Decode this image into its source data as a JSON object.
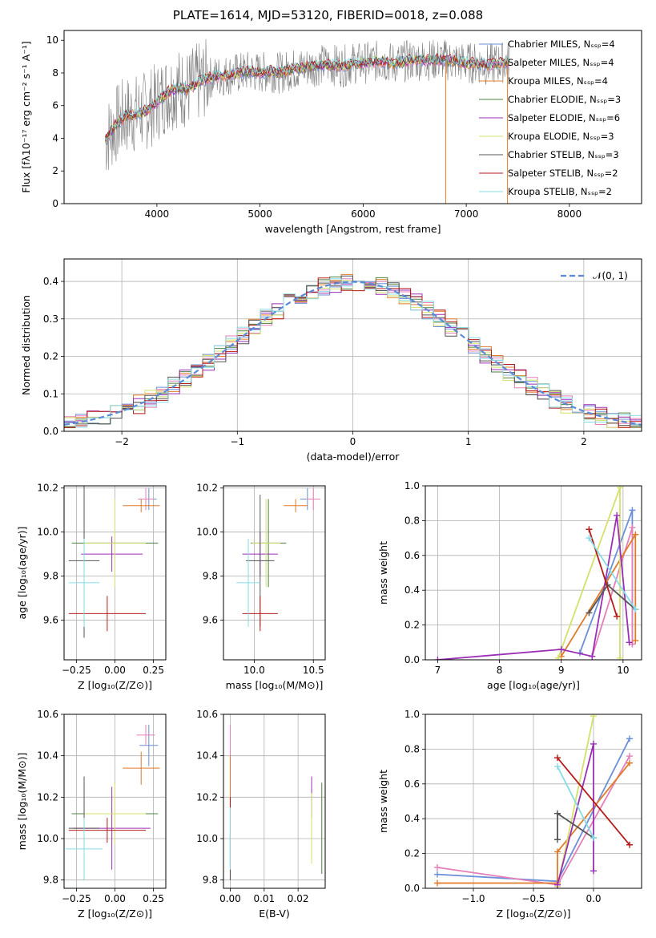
{
  "figure_title": "PLATE=1614, MJD=53120, FIBERID=0018, z=0.088",
  "legend_entries": [
    {
      "label": "Chabrier MILES, Nₛₛₚ=4",
      "color": "#6a8fd8"
    },
    {
      "label": "Salpeter MILES, Nₛₛₚ=4",
      "color": "#e57fb9"
    },
    {
      "label": "Kroupa MILES, Nₛₛₚ=4",
      "color": "#e07b2a"
    },
    {
      "label": "Chabrier ELODIE, Nₛₛₚ=3",
      "color": "#4d8040"
    },
    {
      "label": "Salpeter ELODIE, Nₛₛₚ=6",
      "color": "#9b2fb5"
    },
    {
      "label": "Kroupa ELODIE, Nₛₛₚ=3",
      "color": "#d4e06a"
    },
    {
      "label": "Chabrier STELIB, Nₛₛₚ=3",
      "color": "#555555"
    },
    {
      "label": "Salpeter STELIB, Nₛₛₚ=2",
      "color": "#b51b1b"
    },
    {
      "label": "Kroupa STELIB, Nₛₛₚ=2",
      "color": "#86dce6"
    }
  ],
  "chart_data": [
    {
      "id": "spectrum",
      "type": "line",
      "xlabel": "wavelength [Angstrom, rest frame]",
      "ylabel": "Flux [fλ10⁻¹⁷ erg cm⁻² s⁻¹ A⁻¹]",
      "xlim": [
        3100,
        8700
      ],
      "ylim": [
        0,
        10.6
      ],
      "xticks": [
        "4000",
        "5000",
        "6000",
        "7000",
        "8000"
      ],
      "yticks": [
        "0",
        "2",
        "4",
        "6",
        "8",
        "10"
      ],
      "x": [
        3500,
        3600,
        3700,
        3800,
        3900,
        4000,
        4100,
        4200,
        4300,
        4400,
        4500,
        4600,
        4700,
        4800,
        4900,
        5000,
        5100,
        5200,
        5300,
        5400,
        5500,
        5600,
        5700,
        5800,
        5900,
        6000,
        6100,
        6200,
        6300,
        6400,
        6500,
        6600,
        6700,
        6800,
        6900,
        7000,
        7100,
        7200,
        7300,
        7400
      ],
      "model_flux": [
        3.9,
        4.8,
        5.4,
        5.5,
        5.7,
        6.2,
        6.8,
        7.1,
        7.0,
        7.4,
        7.7,
        7.8,
        7.9,
        8.0,
        8.1,
        8.0,
        8.1,
        8.0,
        8.2,
        8.3,
        8.4,
        8.5,
        8.5,
        8.4,
        8.6,
        8.6,
        8.7,
        8.7,
        8.6,
        8.7,
        8.8,
        8.8,
        8.8,
        8.8,
        8.7,
        8.6,
        8.6,
        8.5,
        8.6,
        8.7
      ],
      "data_lines": [
        "gray",
        "colored models",
        "gaps at 6800 and 7400"
      ]
    },
    {
      "id": "residuals",
      "type": "line",
      "xlabel": "(data-model)/error",
      "ylabel": "Normed distribution",
      "xlim": [
        -2.5,
        2.5
      ],
      "ylim": [
        0,
        0.46
      ],
      "xticks": [
        "−2",
        "−1",
        "0",
        "1",
        "2"
      ],
      "yticks": [
        "0.0",
        "0.1",
        "0.2",
        "0.3",
        "0.4"
      ],
      "legend": "𝒩(0, 1)",
      "histogram": {
        "x": [
          -2.5,
          -2.3,
          -2.1,
          -1.9,
          -1.7,
          -1.5,
          -1.3,
          -1.1,
          -0.9,
          -0.7,
          -0.5,
          -0.3,
          -0.1,
          0.1,
          0.3,
          0.5,
          0.7,
          0.9,
          1.1,
          1.3,
          1.5,
          1.7,
          1.9,
          2.1,
          2.3
        ],
        "y": [
          0.025,
          0.04,
          0.06,
          0.07,
          0.09,
          0.12,
          0.17,
          0.22,
          0.27,
          0.32,
          0.37,
          0.39,
          0.4,
          0.4,
          0.38,
          0.35,
          0.3,
          0.24,
          0.19,
          0.15,
          0.11,
          0.08,
          0.06,
          0.04,
          0.03
        ]
      }
    },
    {
      "id": "age_vs_Z",
      "type": "scatter",
      "xlabel": "Z [log₁₀(Z/Z⊙)]",
      "ylabel": "age  [log₁₀(age/yr)]",
      "xlim": [
        -0.33,
        0.33
      ],
      "ylim": [
        9.42,
        10.21
      ],
      "xticks": [
        "−0.25",
        "0.00",
        "0.25"
      ],
      "yticks": [
        "9.6",
        "9.8",
        "10.0",
        "10.2"
      ],
      "points": [
        {
          "x": 0.22,
          "y": 10.15,
          "xerr": 0.05,
          "yerr": 0.05,
          "color": "#6a8fd8"
        },
        {
          "x": 0.2,
          "y": 10.15,
          "xerr": 0.05,
          "yerr": 0.05,
          "color": "#e57fb9"
        },
        {
          "x": 0.17,
          "y": 10.12,
          "xerr": 0.12,
          "yerr": 0.03,
          "color": "#e07b2a"
        },
        {
          "x": 0.0,
          "y": 9.95,
          "xerr": 0.28,
          "yerr": 0.12,
          "color": "#4d8040"
        },
        {
          "x": -0.02,
          "y": 9.9,
          "xerr": 0.2,
          "yerr": 0.08,
          "color": "#9b2fb5"
        },
        {
          "x": 0.0,
          "y": 9.95,
          "xerr": 0.2,
          "yerr": 0.2,
          "color": "#d4e06a"
        },
        {
          "x": -0.2,
          "y": 9.87,
          "xerr": 0.1,
          "yerr": 0.35,
          "color": "#555555"
        },
        {
          "x": -0.05,
          "y": 9.63,
          "xerr": 0.25,
          "yerr": 0.08,
          "color": "#b51b1b"
        },
        {
          "x": -0.2,
          "y": 9.77,
          "xerr": 0.1,
          "yerr": 0.2,
          "color": "#86dce6"
        }
      ]
    },
    {
      "id": "age_vs_mass",
      "type": "scatter",
      "xlabel": "mass [log₁₀(M/M⊙)]",
      "ylabel": "",
      "xlim": [
        9.74,
        10.6
      ],
      "ylim": [
        9.42,
        10.21
      ],
      "xticks": [
        "10.0",
        "10.5"
      ],
      "yticks": [
        "9.6",
        "9.8",
        "10.0",
        "10.2"
      ],
      "points": [
        {
          "x": 10.45,
          "y": 10.15,
          "xerr": 0.06,
          "yerr": 0.05,
          "color": "#6a8fd8"
        },
        {
          "x": 10.5,
          "y": 10.15,
          "xerr": 0.06,
          "yerr": 0.05,
          "color": "#e57fb9"
        },
        {
          "x": 10.35,
          "y": 10.12,
          "xerr": 0.1,
          "yerr": 0.03,
          "color": "#e07b2a"
        },
        {
          "x": 10.12,
          "y": 9.95,
          "xerr": 0.15,
          "yerr": 0.2,
          "color": "#4d8040"
        },
        {
          "x": 10.05,
          "y": 9.9,
          "xerr": 0.15,
          "yerr": 0.1,
          "color": "#9b2fb5"
        },
        {
          "x": 10.1,
          "y": 9.95,
          "xerr": 0.12,
          "yerr": 0.2,
          "color": "#d4e06a"
        },
        {
          "x": 10.05,
          "y": 9.87,
          "xerr": 0.12,
          "yerr": 0.3,
          "color": "#555555"
        },
        {
          "x": 10.05,
          "y": 9.63,
          "xerr": 0.15,
          "yerr": 0.08,
          "color": "#b51b1b"
        },
        {
          "x": 9.95,
          "y": 9.77,
          "xerr": 0.1,
          "yerr": 0.2,
          "color": "#86dce6"
        }
      ]
    },
    {
      "id": "mass_weight_vs_age",
      "type": "line",
      "xlabel": "age  [log₁₀(age/yr)]",
      "ylabel": "mass weight",
      "xlim": [
        6.8,
        10.3
      ],
      "ylim": [
        0,
        1
      ],
      "xticks": [
        "7",
        "8",
        "9",
        "10"
      ],
      "yticks": [
        "0.0",
        "0.2",
        "0.4",
        "0.6",
        "0.8",
        "1.0"
      ],
      "series": [
        {
          "color": "#6a8fd8",
          "x": [
            9.3,
            10.15,
            10.15
          ],
          "y": [
            0.04,
            0.86,
            0.09
          ]
        },
        {
          "color": "#e57fb9",
          "x": [
            9.5,
            10.15,
            10.15
          ],
          "y": [
            0.02,
            0.76,
            0.09
          ]
        },
        {
          "color": "#e07b2a",
          "x": [
            9.0,
            10.2,
            10.2
          ],
          "y": [
            0.02,
            0.72,
            0.11
          ]
        },
        {
          "color": "#d4e06a",
          "x": [
            8.95,
            9.95,
            9.95
          ],
          "y": [
            0.01,
            0.99,
            0.01
          ]
        },
        {
          "color": "#9b2fb5",
          "x": [
            7.0,
            9.0,
            9.5,
            9.9,
            10.1
          ],
          "y": [
            0.0,
            0.06,
            0.02,
            0.83,
            0.1
          ]
        },
        {
          "color": "#555555",
          "x": [
            9.45,
            9.75,
            10.2
          ],
          "y": [
            0.27,
            0.43,
            0.29
          ]
        },
        {
          "color": "#b51b1b",
          "x": [
            9.45,
            9.9
          ],
          "y": [
            0.75,
            0.25
          ]
        },
        {
          "color": "#86dce6",
          "x": [
            9.45,
            10.2
          ],
          "y": [
            0.7,
            0.29
          ]
        }
      ]
    },
    {
      "id": "mass_vs_Z",
      "type": "scatter",
      "xlabel": "Z [log₁₀(Z/Z⊙)]",
      "ylabel": "mass [log₁₀(M/M⊙)]",
      "xlim": [
        -0.33,
        0.33
      ],
      "ylim": [
        9.76,
        10.6
      ],
      "xticks": [
        "−0.25",
        "0.00",
        "0.25"
      ],
      "yticks": [
        "9.8",
        "10.0",
        "10.2",
        "10.4",
        "10.6"
      ],
      "points": [
        {
          "x": 0.22,
          "y": 10.45,
          "xerr": 0.06,
          "yerr": 0.1,
          "color": "#6a8fd8"
        },
        {
          "x": 0.2,
          "y": 10.5,
          "xerr": 0.06,
          "yerr": 0.05,
          "color": "#e57fb9"
        },
        {
          "x": 0.17,
          "y": 10.34,
          "xerr": 0.12,
          "yerr": 0.08,
          "color": "#e07b2a"
        },
        {
          "x": 0.0,
          "y": 10.12,
          "xerr": 0.28,
          "yerr": 0.15,
          "color": "#4d8040"
        },
        {
          "x": -0.02,
          "y": 10.05,
          "xerr": 0.25,
          "yerr": 0.2,
          "color": "#9b2fb5"
        },
        {
          "x": 0.0,
          "y": 10.12,
          "xerr": 0.2,
          "yerr": 0.15,
          "color": "#d4e06a"
        },
        {
          "x": -0.2,
          "y": 10.05,
          "xerr": 0.1,
          "yerr": 0.25,
          "color": "#555555"
        },
        {
          "x": -0.05,
          "y": 10.04,
          "xerr": 0.25,
          "yerr": 0.06,
          "color": "#b51b1b"
        },
        {
          "x": -0.2,
          "y": 9.95,
          "xerr": 0.12,
          "yerr": 0.15,
          "color": "#86dce6"
        }
      ]
    },
    {
      "id": "mass_vs_ebv",
      "type": "scatter",
      "xlabel": "E(B-V)",
      "ylabel": "",
      "xlim": [
        -0.002,
        0.028
      ],
      "ylim": [
        9.76,
        10.6
      ],
      "xticks": [
        "0.00",
        "0.01",
        "0.02"
      ],
      "yticks": [
        "9.8",
        "10.0",
        "10.2",
        "10.4",
        "10.6"
      ],
      "points": [
        {
          "x": 0.0,
          "y": 10.2,
          "xerr": 0,
          "yerr": 0.35,
          "color": "#e57fb9"
        },
        {
          "x": 0.0,
          "y": 10.1,
          "xerr": 0,
          "yerr": 0.3,
          "color": "#e07b2a"
        },
        {
          "x": 0.0,
          "y": 10.0,
          "xerr": 0,
          "yerr": 0.2,
          "color": "#b51b1b"
        },
        {
          "x": 0.0,
          "y": 9.9,
          "xerr": 0,
          "yerr": 0.1,
          "color": "#555555"
        },
        {
          "x": 0.0,
          "y": 10.0,
          "xerr": 0,
          "yerr": 0.15,
          "color": "#86dce6"
        },
        {
          "x": 0.024,
          "y": 10.2,
          "xerr": 0,
          "yerr": 0.1,
          "color": "#9b2fb5"
        },
        {
          "x": 0.024,
          "y": 10.05,
          "xerr": 0,
          "yerr": 0.17,
          "color": "#d4e06a"
        },
        {
          "x": 0.027,
          "y": 10.05,
          "xerr": 0,
          "yerr": 0.22,
          "color": "#4d8040"
        }
      ]
    },
    {
      "id": "mass_weight_vs_Z",
      "type": "line",
      "xlabel": "Z [log₁₀(Z/Z⊙)]",
      "ylabel": "mass weight",
      "xlim": [
        -1.4,
        0.4
      ],
      "ylim": [
        0,
        1
      ],
      "xticks": [
        "−1.0",
        "−0.5",
        "0.0"
      ],
      "yticks": [
        "0.0",
        "0.2",
        "0.4",
        "0.6",
        "0.8",
        "1.0"
      ],
      "series": [
        {
          "color": "#6a8fd8",
          "x": [
            -1.3,
            -0.3,
            0.3
          ],
          "y": [
            0.08,
            0.04,
            0.86
          ]
        },
        {
          "color": "#e57fb9",
          "x": [
            -1.3,
            -0.3,
            0.3
          ],
          "y": [
            0.12,
            0.02,
            0.76
          ]
        },
        {
          "color": "#e07b2a",
          "x": [
            -1.3,
            -0.3,
            -0.3,
            0.3
          ],
          "y": [
            0.03,
            0.03,
            0.21,
            0.72
          ]
        },
        {
          "color": "#d4e06a",
          "x": [
            -0.3,
            0.0
          ],
          "y": [
            0.01,
            0.99
          ]
        },
        {
          "color": "#9b2fb5",
          "x": [
            -0.3,
            0.0,
            0.0
          ],
          "y": [
            0.02,
            0.83,
            0.1
          ]
        },
        {
          "color": "#555555",
          "x": [
            -0.3,
            -0.3,
            0.0
          ],
          "y": [
            0.28,
            0.43,
            0.29
          ]
        },
        {
          "color": "#b51b1b",
          "x": [
            -0.3,
            0.3
          ],
          "y": [
            0.75,
            0.25
          ]
        },
        {
          "color": "#86dce6",
          "x": [
            -0.3,
            0.0
          ],
          "y": [
            0.7,
            0.29
          ]
        }
      ]
    }
  ]
}
